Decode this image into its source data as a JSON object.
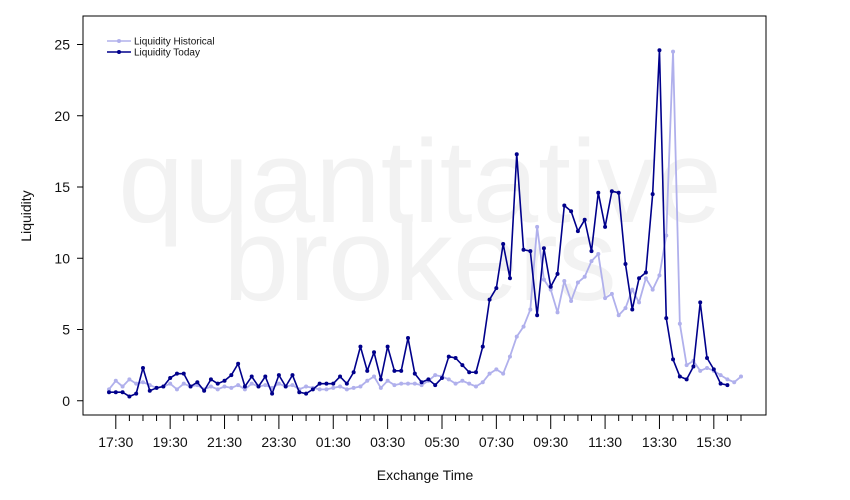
{
  "chart_data": {
    "type": "line",
    "xlabel": "Exchange Time",
    "ylabel": "Liquidity",
    "watermark": [
      "quantitative",
      "brokers"
    ],
    "ylim": [
      -1,
      27
    ],
    "yticks": [
      0,
      5,
      10,
      15,
      20,
      25
    ],
    "x_tick_labels": [
      "17:30",
      "19:30",
      "21:30",
      "23:30",
      "01:30",
      "03:30",
      "05:30",
      "07:30",
      "09:30",
      "11:30",
      "13:30",
      "15:30"
    ],
    "x_tick_label_indices": [
      1,
      9,
      17,
      25,
      33,
      41,
      49,
      57,
      65,
      73,
      81,
      89
    ],
    "x_tick_step": 2,
    "legend_position": "top-left",
    "colors": {
      "historical": "#b0b0ec",
      "today": "#00008b",
      "axis": "#000000"
    },
    "series": [
      {
        "key": "historical",
        "name": "Liquidity Historical",
        "values": [
          0.8,
          1.4,
          1.0,
          1.5,
          1.2,
          1.3,
          1.1,
          0.9,
          1.0,
          1.2,
          0.8,
          1.2,
          1.0,
          1.1,
          0.8,
          1.0,
          0.8,
          1.0,
          0.9,
          1.1,
          0.8,
          1.2,
          1.0,
          1.1,
          0.9,
          1.2,
          1.0,
          1.1,
          0.8,
          1.0,
          0.9,
          0.8,
          0.8,
          0.9,
          1.0,
          0.8,
          0.9,
          1.0,
          1.4,
          1.7,
          0.9,
          1.4,
          1.1,
          1.2,
          1.2,
          1.2,
          1.1,
          1.4,
          1.8,
          1.7,
          1.5,
          1.2,
          1.4,
          1.2,
          1.0,
          1.3,
          1.9,
          2.2,
          1.9,
          3.1,
          4.5,
          5.2,
          6.4,
          12.2,
          8.5,
          7.8,
          6.2,
          8.4,
          7.0,
          8.3,
          8.7,
          9.8,
          10.3,
          7.2,
          7.5,
          6.0,
          6.5,
          7.8,
          6.9,
          8.6,
          7.8,
          8.8,
          11.6,
          24.5,
          5.4,
          2.5,
          2.8,
          2.1,
          2.3,
          2.1,
          1.8,
          1.5,
          1.3,
          1.7
        ]
      },
      {
        "key": "today",
        "name": "Liquidity Today",
        "values": [
          0.6,
          0.6,
          0.6,
          0.3,
          0.5,
          2.3,
          0.7,
          0.9,
          1.0,
          1.6,
          1.9,
          1.9,
          1.0,
          1.3,
          0.7,
          1.5,
          1.2,
          1.4,
          1.8,
          2.6,
          1.0,
          1.7,
          1.0,
          1.7,
          0.5,
          1.8,
          1.0,
          1.8,
          0.6,
          0.5,
          0.8,
          1.2,
          1.2,
          1.2,
          1.7,
          1.2,
          2.0,
          3.8,
          2.1,
          3.4,
          1.5,
          3.8,
          2.1,
          2.1,
          4.4,
          1.9,
          1.3,
          1.5,
          1.1,
          1.6,
          3.1,
          3.0,
          2.5,
          2.0,
          2.0,
          3.8,
          7.1,
          7.9,
          11.0,
          8.6,
          17.3,
          10.6,
          10.5,
          6.0,
          10.7,
          8.0,
          8.9,
          13.7,
          13.3,
          11.9,
          12.7,
          10.5,
          14.6,
          12.2,
          14.7,
          14.6,
          9.6,
          6.4,
          8.6,
          9.0,
          14.5,
          24.6,
          5.8,
          2.9,
          1.7,
          1.5,
          2.4,
          6.9,
          3.0,
          2.2,
          1.2,
          1.1
        ]
      }
    ]
  }
}
